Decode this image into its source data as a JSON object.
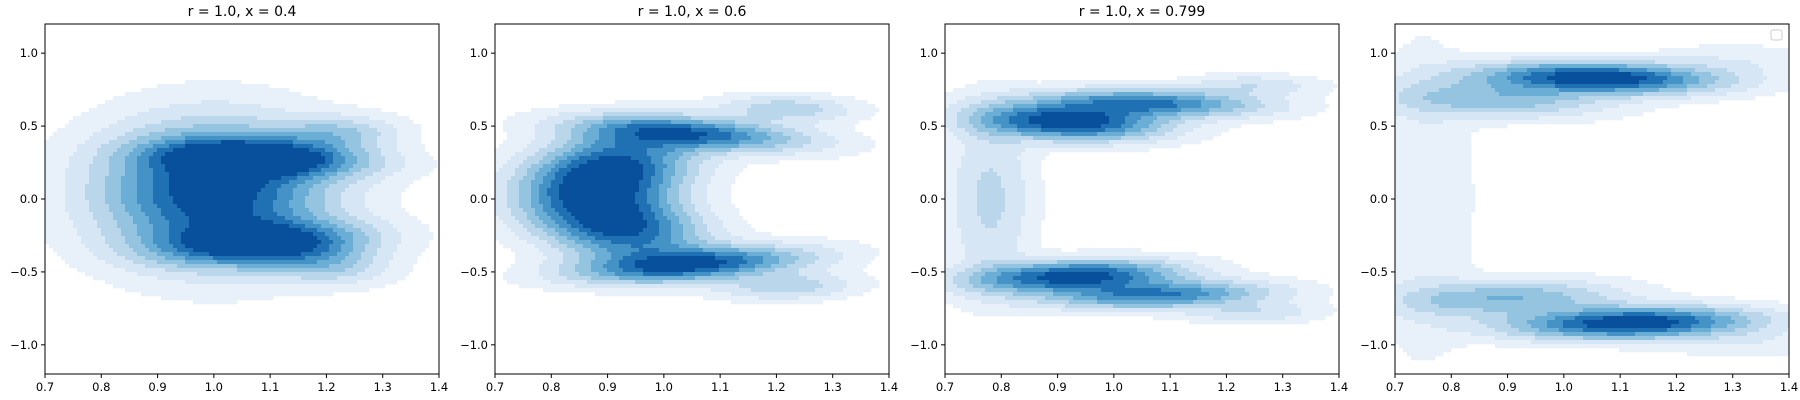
{
  "chart_data": [
    {
      "type": "contour",
      "title": "r = 1.0, x = 0.4",
      "xlim": [
        0.7,
        1.4
      ],
      "ylim": [
        -1.2,
        1.2
      ],
      "xticks": [
        0.7,
        0.8,
        0.9,
        1.0,
        1.1,
        1.2,
        1.3,
        1.4
      ],
      "yticks": [
        -1.0,
        -0.5,
        0.0,
        0.5,
        1.0
      ],
      "colormap": "Blues",
      "density_blobs": [
        {
          "cx": 1.0,
          "cy": 0.05,
          "rx": 0.13,
          "ry": 0.3,
          "angle": 0,
          "weight": 1.0
        },
        {
          "cx": 1.09,
          "cy": 0.28,
          "rx": 0.12,
          "ry": 0.08,
          "angle": -12,
          "weight": 0.85
        },
        {
          "cx": 1.09,
          "cy": -0.3,
          "rx": 0.12,
          "ry": 0.09,
          "angle": 20,
          "weight": 0.85
        },
        {
          "cx": 1.22,
          "cy": 0.45,
          "rx": 0.07,
          "ry": 0.08,
          "angle": -20,
          "weight": 0.3
        },
        {
          "cx": 1.2,
          "cy": -0.45,
          "rx": 0.07,
          "ry": 0.09,
          "angle": 15,
          "weight": 0.3
        }
      ]
    },
    {
      "type": "contour",
      "title": "r = 1.0, x = 0.6",
      "xlim": [
        0.7,
        1.4
      ],
      "ylim": [
        -1.2,
        1.2
      ],
      "xticks": [
        0.7,
        0.8,
        0.9,
        1.0,
        1.1,
        1.2,
        1.3,
        1.4
      ],
      "yticks": [
        -1.0,
        -0.5,
        0.0,
        0.5,
        1.0
      ],
      "colormap": "Blues",
      "density_blobs": [
        {
          "cx": 0.9,
          "cy": 0.18,
          "rx": 0.09,
          "ry": 0.18,
          "angle": -10,
          "weight": 1.0
        },
        {
          "cx": 0.92,
          "cy": -0.18,
          "rx": 0.09,
          "ry": 0.17,
          "angle": 12,
          "weight": 0.9
        },
        {
          "cx": 1.05,
          "cy": 0.45,
          "rx": 0.14,
          "ry": 0.07,
          "angle": -18,
          "weight": 0.75
        },
        {
          "cx": 1.05,
          "cy": -0.45,
          "rx": 0.14,
          "ry": 0.07,
          "angle": 18,
          "weight": 0.85
        },
        {
          "cx": 1.22,
          "cy": 0.62,
          "rx": 0.08,
          "ry": 0.06,
          "angle": -12,
          "weight": 0.3
        },
        {
          "cx": 1.22,
          "cy": -0.6,
          "rx": 0.08,
          "ry": 0.06,
          "angle": 12,
          "weight": 0.3
        }
      ]
    },
    {
      "type": "contour",
      "title": "r = 1.0, x = 0.799",
      "xlim": [
        0.7,
        1.4
      ],
      "ylim": [
        -1.2,
        1.2
      ],
      "xticks": [
        0.7,
        0.8,
        0.9,
        1.0,
        1.1,
        1.2,
        1.3,
        1.4
      ],
      "yticks": [
        -1.0,
        -0.5,
        0.0,
        0.5,
        1.0
      ],
      "colormap": "Blues",
      "density_blobs": [
        {
          "cx": 0.92,
          "cy": 0.53,
          "rx": 0.11,
          "ry": 0.08,
          "angle": -15,
          "weight": 1.0
        },
        {
          "cx": 1.07,
          "cy": 0.66,
          "rx": 0.13,
          "ry": 0.06,
          "angle": -8,
          "weight": 0.7
        },
        {
          "cx": 0.93,
          "cy": -0.53,
          "rx": 0.12,
          "ry": 0.07,
          "angle": 12,
          "weight": 0.95
        },
        {
          "cx": 1.08,
          "cy": -0.66,
          "rx": 0.13,
          "ry": 0.06,
          "angle": 8,
          "weight": 0.7
        },
        {
          "cx": 0.78,
          "cy": 0.0,
          "rx": 0.05,
          "ry": 0.4,
          "angle": 0,
          "weight": 0.25
        },
        {
          "cx": 1.25,
          "cy": 0.78,
          "rx": 0.08,
          "ry": 0.05,
          "angle": -5,
          "weight": 0.2
        },
        {
          "cx": 1.25,
          "cy": -0.78,
          "rx": 0.08,
          "ry": 0.05,
          "angle": 5,
          "weight": 0.2
        }
      ]
    },
    {
      "type": "contour",
      "title": "",
      "xlim": [
        0.7,
        1.4
      ],
      "ylim": [
        -1.2,
        1.2
      ],
      "xticks": [
        0.7,
        0.8,
        0.9,
        1.0,
        1.1,
        1.2,
        1.3,
        1.4
      ],
      "yticks": [
        -1.0,
        -0.5,
        0.0,
        0.5,
        1.0
      ],
      "colormap": "Blues",
      "legend": "top-right, empty",
      "density_blobs": [
        {
          "cx": 1.06,
          "cy": 0.83,
          "rx": 0.14,
          "ry": 0.07,
          "angle": -7,
          "weight": 1.0
        },
        {
          "cx": 0.88,
          "cy": 0.68,
          "rx": 0.13,
          "ry": 0.08,
          "angle": -10,
          "weight": 0.4
        },
        {
          "cx": 1.12,
          "cy": -0.85,
          "rx": 0.14,
          "ry": 0.07,
          "angle": 7,
          "weight": 1.0
        },
        {
          "cx": 0.9,
          "cy": -0.68,
          "rx": 0.13,
          "ry": 0.08,
          "angle": 10,
          "weight": 0.45
        },
        {
          "cx": 0.75,
          "cy": 0.0,
          "rx": 0.06,
          "ry": 0.75,
          "angle": 0,
          "weight": 0.12
        },
        {
          "cx": 1.3,
          "cy": 0.95,
          "rx": 0.1,
          "ry": 0.08,
          "angle": 0,
          "weight": 0.1
        },
        {
          "cx": 1.32,
          "cy": -0.98,
          "rx": 0.1,
          "ry": 0.08,
          "angle": 0,
          "weight": 0.1
        }
      ]
    }
  ],
  "colors": {
    "levels": [
      "#f7fbff",
      "#e8f1fa",
      "#d6e6f4",
      "#bad6eb",
      "#94c4df",
      "#6aaed6",
      "#4592c6",
      "#2070b4",
      "#08509b"
    ]
  }
}
